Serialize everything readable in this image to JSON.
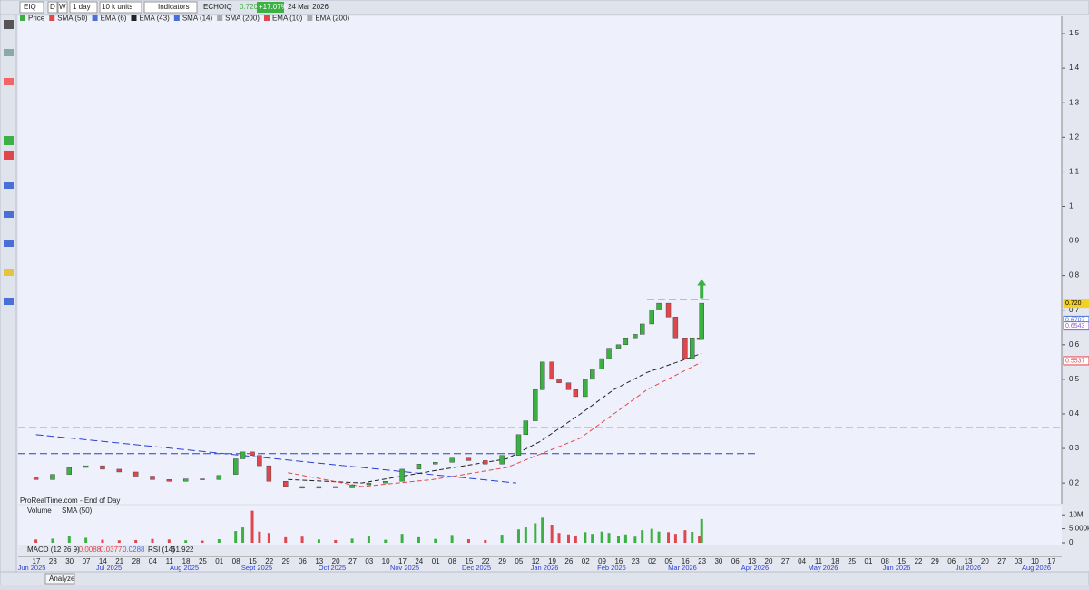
{
  "toolbar": {
    "symbol": "EIQ",
    "daily": "D",
    "weekly": "W",
    "period": "1 day",
    "units": "10 k units",
    "indicators": "Indicators",
    "name": "ECHOIQ",
    "price": {
      "value": 0.72,
      "label": "0.720"
    },
    "change": "+17.07%",
    "date": "24 Mar 2026"
  },
  "legend": [
    "Price",
    "SMA (50)",
    "EMA (6)",
    "EMA (43)",
    "SMA (14)",
    "SMA (200)",
    "EMA (10)",
    "EMA (200)"
  ],
  "footer": "ProRealTime.com - End of Day",
  "volume_legend": [
    "Volume",
    "SMA (50)"
  ],
  "macd_row": {
    "macd": "MACD (12 26 9)",
    "macd_values": [
      -0.0088,
      0.0377,
      0.0288
    ],
    "rsi": "RSI (14)",
    "rsi_value": 61.922
  },
  "bottom_bar": {
    "analyze": "Analyze"
  },
  "chart_data": {
    "type": "candlestick",
    "x": [
      "2025-06-17",
      "2025-06-24",
      "2025-07-01",
      "2025-07-08",
      "2025-07-15",
      "2025-07-22",
      "2025-07-29",
      "2025-08-05",
      "2025-08-12",
      "2025-08-19",
      "2025-08-26",
      "2025-09-02",
      "2025-09-09",
      "2025-09-12",
      "2025-09-16",
      "2025-09-19",
      "2025-09-23",
      "2025-09-30",
      "2025-10-07",
      "2025-10-14",
      "2025-10-21",
      "2025-10-28",
      "2025-11-04",
      "2025-11-11",
      "2025-11-18",
      "2025-11-25",
      "2025-12-02",
      "2025-12-09",
      "2025-12-16",
      "2025-12-23",
      "2025-12-30",
      "2026-01-06",
      "2026-01-09",
      "2026-01-13",
      "2026-01-16",
      "2026-01-20",
      "2026-01-23",
      "2026-01-27",
      "2026-01-30",
      "2026-02-03",
      "2026-02-06",
      "2026-02-10",
      "2026-02-13",
      "2026-02-17",
      "2026-02-20",
      "2026-02-24",
      "2026-02-27",
      "2026-03-03",
      "2026-03-06",
      "2026-03-10",
      "2026-03-13",
      "2026-03-17",
      "2026-03-20",
      "2026-03-23",
      "2026-03-24"
    ],
    "open": [
      0.215,
      0.21,
      0.225,
      0.245,
      0.25,
      0.24,
      0.232,
      0.22,
      0.21,
      0.205,
      0.212,
      0.21,
      0.225,
      0.27,
      0.29,
      0.28,
      0.25,
      0.205,
      0.19,
      0.185,
      0.19,
      0.186,
      0.195,
      0.2,
      0.205,
      0.24,
      0.255,
      0.26,
      0.272,
      0.265,
      0.255,
      0.28,
      0.34,
      0.38,
      0.47,
      0.55,
      0.5,
      0.49,
      0.47,
      0.45,
      0.5,
      0.53,
      0.56,
      0.59,
      0.6,
      0.62,
      0.63,
      0.66,
      0.7,
      0.72,
      0.68,
      0.62,
      0.56,
      0.62,
      0.615
    ],
    "close": [
      0.21,
      0.225,
      0.245,
      0.25,
      0.24,
      0.232,
      0.22,
      0.21,
      0.205,
      0.212,
      0.21,
      0.222,
      0.27,
      0.29,
      0.28,
      0.25,
      0.205,
      0.19,
      0.185,
      0.19,
      0.186,
      0.195,
      0.2,
      0.205,
      0.24,
      0.255,
      0.26,
      0.272,
      0.265,
      0.255,
      0.28,
      0.34,
      0.38,
      0.47,
      0.55,
      0.5,
      0.49,
      0.47,
      0.45,
      0.5,
      0.53,
      0.56,
      0.59,
      0.6,
      0.62,
      0.63,
      0.66,
      0.7,
      0.72,
      0.68,
      0.62,
      0.56,
      0.62,
      0.615,
      0.72
    ],
    "volume": [
      1200000,
      1500000,
      2400000,
      1800000,
      1100000,
      900000,
      1000000,
      1400000,
      1200000,
      900000,
      800000,
      1300000,
      4200000,
      5500000,
      11500000,
      4000000,
      3500000,
      2000000,
      2200000,
      1200000,
      1000000,
      1500000,
      2500000,
      1100000,
      3200000,
      2000000,
      1400000,
      2800000,
      1300000,
      1000000,
      2900000,
      4800000,
      5500000,
      7000000,
      9000000,
      6500000,
      3500000,
      3000000,
      2500000,
      3800000,
      3200000,
      4000000,
      3500000,
      2500000,
      3000000,
      2200000,
      4500000,
      5000000,
      4000000,
      3800000,
      3200000,
      4500000,
      3900000,
      2500000,
      8500000
    ],
    "up_color": "#3cb043",
    "down_color": "#e0474c",
    "averages": [
      {
        "name": "EMA (43)",
        "color": "#222222",
        "x": [
          "2025-10-01",
          "2025-11-01",
          "2025-12-01",
          "2026-01-01",
          "2026-01-15",
          "2026-02-01",
          "2026-02-15",
          "2026-03-01",
          "2026-03-16",
          "2026-03-24"
        ],
        "values": [
          0.21,
          0.2,
          0.235,
          0.27,
          0.32,
          0.4,
          0.47,
          0.52,
          0.555,
          0.575
        ]
      },
      {
        "name": "SMA (50)",
        "color": "#e0474c",
        "x": [
          "2025-10-01",
          "2025-11-01",
          "2025-12-01",
          "2026-01-01",
          "2026-02-01",
          "2026-02-15",
          "2026-03-01",
          "2026-03-24"
        ],
        "values": [
          0.23,
          0.19,
          0.21,
          0.245,
          0.33,
          0.4,
          0.47,
          0.55
        ]
      }
    ],
    "hlines": [
      0.36,
      0.285
    ],
    "resistance": {
      "x": [
        "2026-03-01",
        "2026-03-28"
      ],
      "value": 0.73
    },
    "trendline": {
      "x": [
        "2025-06-17",
        "2026-01-05"
      ],
      "values": [
        0.34,
        0.2
      ]
    },
    "signal": {
      "x": "2026-03-24",
      "value": 0.79
    },
    "price_tags": [
      {
        "value": 0.72,
        "label": "0.720",
        "color": "#f2d024"
      },
      {
        "value": 0.6707,
        "color": "#4a6fd6"
      },
      {
        "value": 0.6543,
        "color": "#8a5bd0"
      },
      {
        "value": 0.5537,
        "color": "#e0474c"
      }
    ],
    "ylim": [
      0.14,
      1.55
    ],
    "yticks": [
      0.2,
      0.3,
      0.4,
      0.5,
      0.6,
      0.7,
      0.8,
      0.9,
      1,
      1.1,
      1.2,
      1.3,
      1.4,
      1.5
    ],
    "volume_ylim": [
      0,
      13000000
    ],
    "volume_ticks": [
      {
        "value": 10000000,
        "label": "10M"
      },
      {
        "value": 5000000,
        "label": "5,000k"
      },
      0
    ],
    "week_labels": [
      "17",
      "23",
      "30",
      "07",
      "14",
      "21",
      "28",
      "04",
      "11",
      "18",
      "25",
      "01",
      "08",
      "15",
      "22",
      "29",
      "06",
      "13",
      "20",
      "27",
      "03",
      "10",
      "17",
      "24",
      "01",
      "08",
      "15",
      "22",
      "29",
      "05",
      "12",
      "19",
      "26",
      "02",
      "09",
      "16",
      "23",
      "02",
      "09",
      "16",
      "23",
      "30",
      "06",
      "13",
      "20",
      "27",
      "04",
      "11",
      "18",
      "25",
      "01",
      "08",
      "15",
      "22",
      "29",
      "06",
      "13",
      "20",
      "27",
      "03",
      "10",
      "17"
    ],
    "months": [
      "Jun 2025",
      "Jul 2025",
      "Aug 2025",
      "Sept 2025",
      "Oct 2025",
      "Nov 2025",
      "Dec 2025",
      "Jan 2026",
      "Feb 2026",
      "Mar 2026",
      "Apr 2026",
      "May 2026",
      "Jun 2026",
      "Jul 2026",
      "Aug 2026"
    ]
  }
}
